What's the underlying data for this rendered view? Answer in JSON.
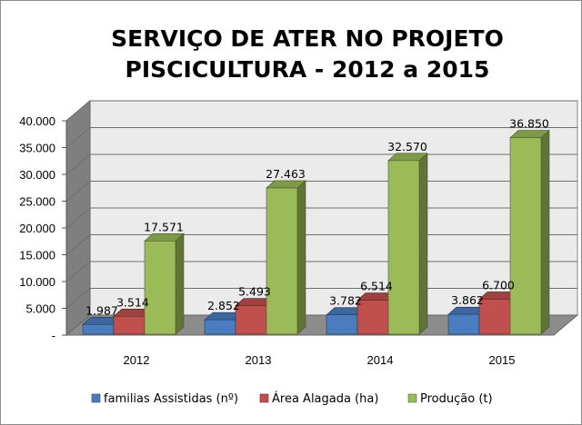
{
  "chart_data": {
    "type": "bar",
    "title_lines": [
      "SERVIÇO DE ATER NO PROJETO",
      "PISCICULTURA - 2012 a 2015"
    ],
    "categories": [
      "2012",
      "2013",
      "2014",
      "2015"
    ],
    "series": [
      {
        "name": "familias Assistidas (nº)",
        "color": "#4a7cc0",
        "values": [
          1987,
          2852,
          3782,
          3862
        ],
        "labels": [
          "1.987",
          "2.852",
          "3.782",
          "3.862"
        ]
      },
      {
        "name": "Área Alagada (ha)",
        "color": "#c0504d",
        "values": [
          3514,
          5493,
          6514,
          6700
        ],
        "labels": [
          "3.514",
          "5.493",
          "6.514",
          "6.700"
        ]
      },
      {
        "name": "Produção (t)",
        "color": "#9bbb59",
        "values": [
          17571,
          27463,
          32570,
          36850
        ],
        "labels": [
          "17.571",
          "27.463",
          "32.570",
          "36.850"
        ]
      }
    ],
    "ylim": [
      0,
      40000
    ],
    "yticks": [
      0,
      5000,
      10000,
      15000,
      20000,
      25000,
      30000,
      35000,
      40000
    ],
    "ytick_labels": [
      "-",
      "5.000",
      "10.000",
      "15.000",
      "20.000",
      "25.000",
      "30.000",
      "35.000",
      "40.000"
    ],
    "grid": true,
    "three_d": true,
    "legend_position": "bottom"
  }
}
